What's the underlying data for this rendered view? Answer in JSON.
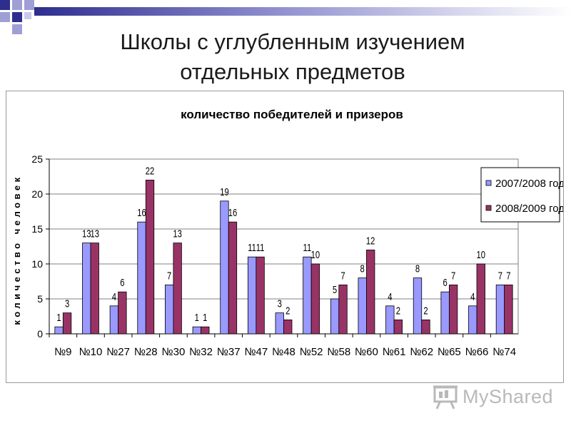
{
  "slide": {
    "title_line1": "Школы с углубленным изучением",
    "title_line2": "отдельных предметов"
  },
  "watermark": {
    "text": "MyShared",
    "icon": "presentation-board-icon"
  },
  "colors": {
    "series1": "#9999ff",
    "series2": "#993366",
    "deco_dark": "#2e2e8f",
    "deco_light": "#9f9fd6"
  },
  "chart_data": {
    "type": "bar",
    "title": "количество победителей и призеров",
    "xlabel": "",
    "ylabel": "количество человек",
    "ylim": [
      0,
      25
    ],
    "yticks": [
      0,
      5,
      10,
      15,
      20,
      25
    ],
    "grid": true,
    "legend_position": "right",
    "categories": [
      "№9",
      "№10",
      "№27",
      "№28",
      "№30",
      "№32",
      "№37",
      "№47",
      "№48",
      "№52",
      "№58",
      "№60",
      "№61",
      "№62",
      "№65",
      "№66",
      "№74"
    ],
    "series": [
      {
        "name": "2007/2008 год",
        "values": [
          1,
          13,
          4,
          16,
          7,
          1,
          19,
          11,
          3,
          11,
          5,
          8,
          4,
          8,
          6,
          4,
          7
        ]
      },
      {
        "name": "2008/2009 год",
        "values": [
          3,
          13,
          6,
          22,
          13,
          1,
          16,
          11,
          2,
          10,
          7,
          12,
          2,
          2,
          7,
          10,
          7
        ]
      }
    ]
  }
}
